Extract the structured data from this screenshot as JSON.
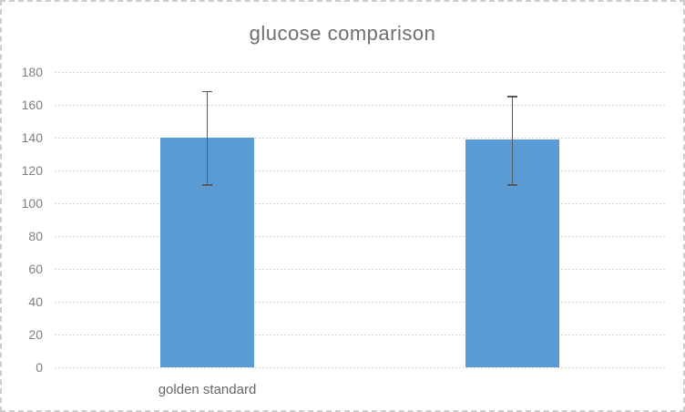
{
  "chart_data": {
    "type": "bar",
    "title": "glucose comparison",
    "categories": [
      "golden standard",
      ""
    ],
    "values": [
      140,
      139
    ],
    "error_bars": [
      {
        "low": 111,
        "high": 168
      },
      {
        "low": 111,
        "high": 165
      }
    ],
    "ylim": [
      0,
      180
    ],
    "ytick_step": 20,
    "yticks": [
      0,
      20,
      40,
      60,
      80,
      100,
      120,
      140,
      160,
      180
    ],
    "xlabel": "",
    "ylabel": "",
    "grid": true,
    "legend": "none",
    "colors": {
      "bar": "#5B9BD5",
      "error_bar": "#595959",
      "gridline": "#D9D9D9",
      "title_text": "#6E6E6E",
      "axis_text": "#7F7F7F",
      "category_text": "#666666",
      "border": "#CCCCCC",
      "background": "#FFFFFF"
    }
  }
}
